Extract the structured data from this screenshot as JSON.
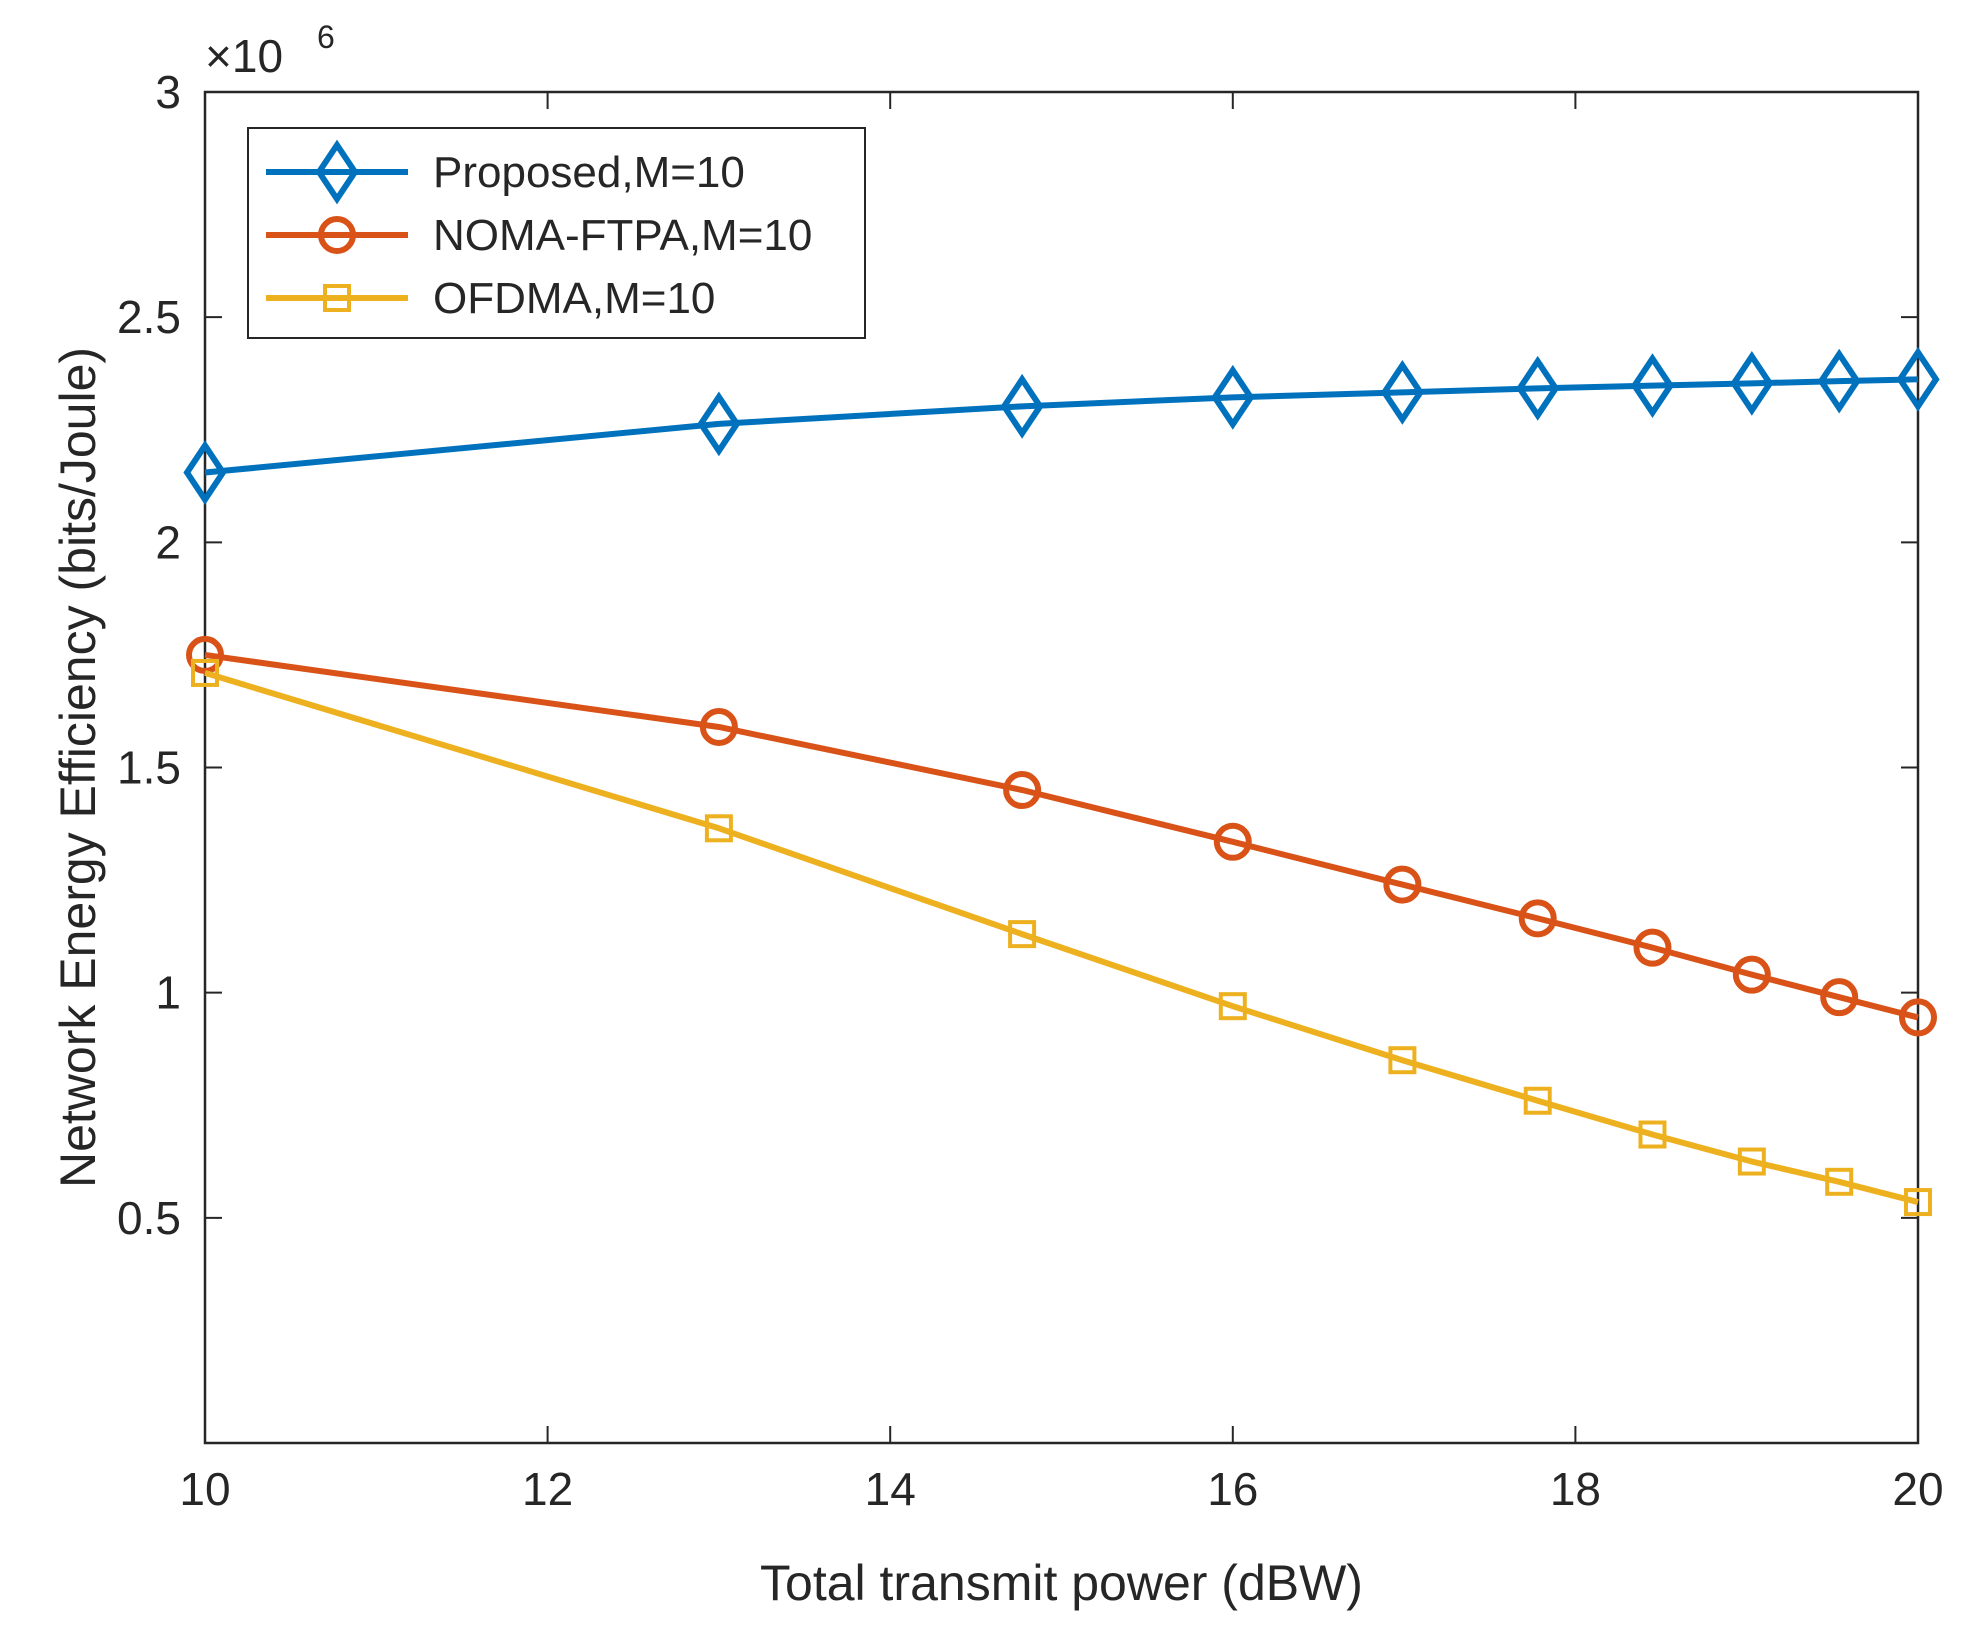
{
  "chart_data": {
    "type": "line",
    "title": "",
    "xlabel": "Total transmit power (dBW)",
    "ylabel": "Network Energy Efficiency (bits/Joule)",
    "y_exponent_label": "×10",
    "y_exponent_power": "6",
    "xlim": [
      10,
      20
    ],
    "ylim": [
      0,
      3
    ],
    "xticks": [
      10,
      12,
      14,
      16,
      18,
      20
    ],
    "xtick_labels": [
      "10",
      "12",
      "14",
      "16",
      "18",
      "20"
    ],
    "yticks": [
      0.5,
      1,
      1.5,
      2,
      2.5,
      3
    ],
    "ytick_labels": [
      "0.5",
      "1",
      "1.5",
      "2",
      "2.5",
      "3"
    ],
    "grid": false,
    "legend_position": "top-left",
    "x": [
      10,
      13,
      14.77,
      16,
      16.99,
      17.78,
      18.45,
      19.03,
      19.54,
      20
    ],
    "series": [
      {
        "name": "Proposed,M=10",
        "color": "#0072BD",
        "marker": "diamond",
        "values": [
          2.155,
          2.263,
          2.302,
          2.322,
          2.333,
          2.342,
          2.348,
          2.353,
          2.358,
          2.362
        ]
      },
      {
        "name": "NOMA-FTPA,M=10",
        "color": "#D95319",
        "marker": "circle",
        "values": [
          1.75,
          1.59,
          1.45,
          1.335,
          1.24,
          1.165,
          1.1,
          1.04,
          0.99,
          0.945
        ]
      },
      {
        "name": "OFDMA,M=10",
        "color": "#EDB120",
        "marker": "square",
        "values": [
          1.71,
          1.365,
          1.13,
          0.97,
          0.85,
          0.76,
          0.685,
          0.625,
          0.58,
          0.535
        ]
      }
    ]
  }
}
